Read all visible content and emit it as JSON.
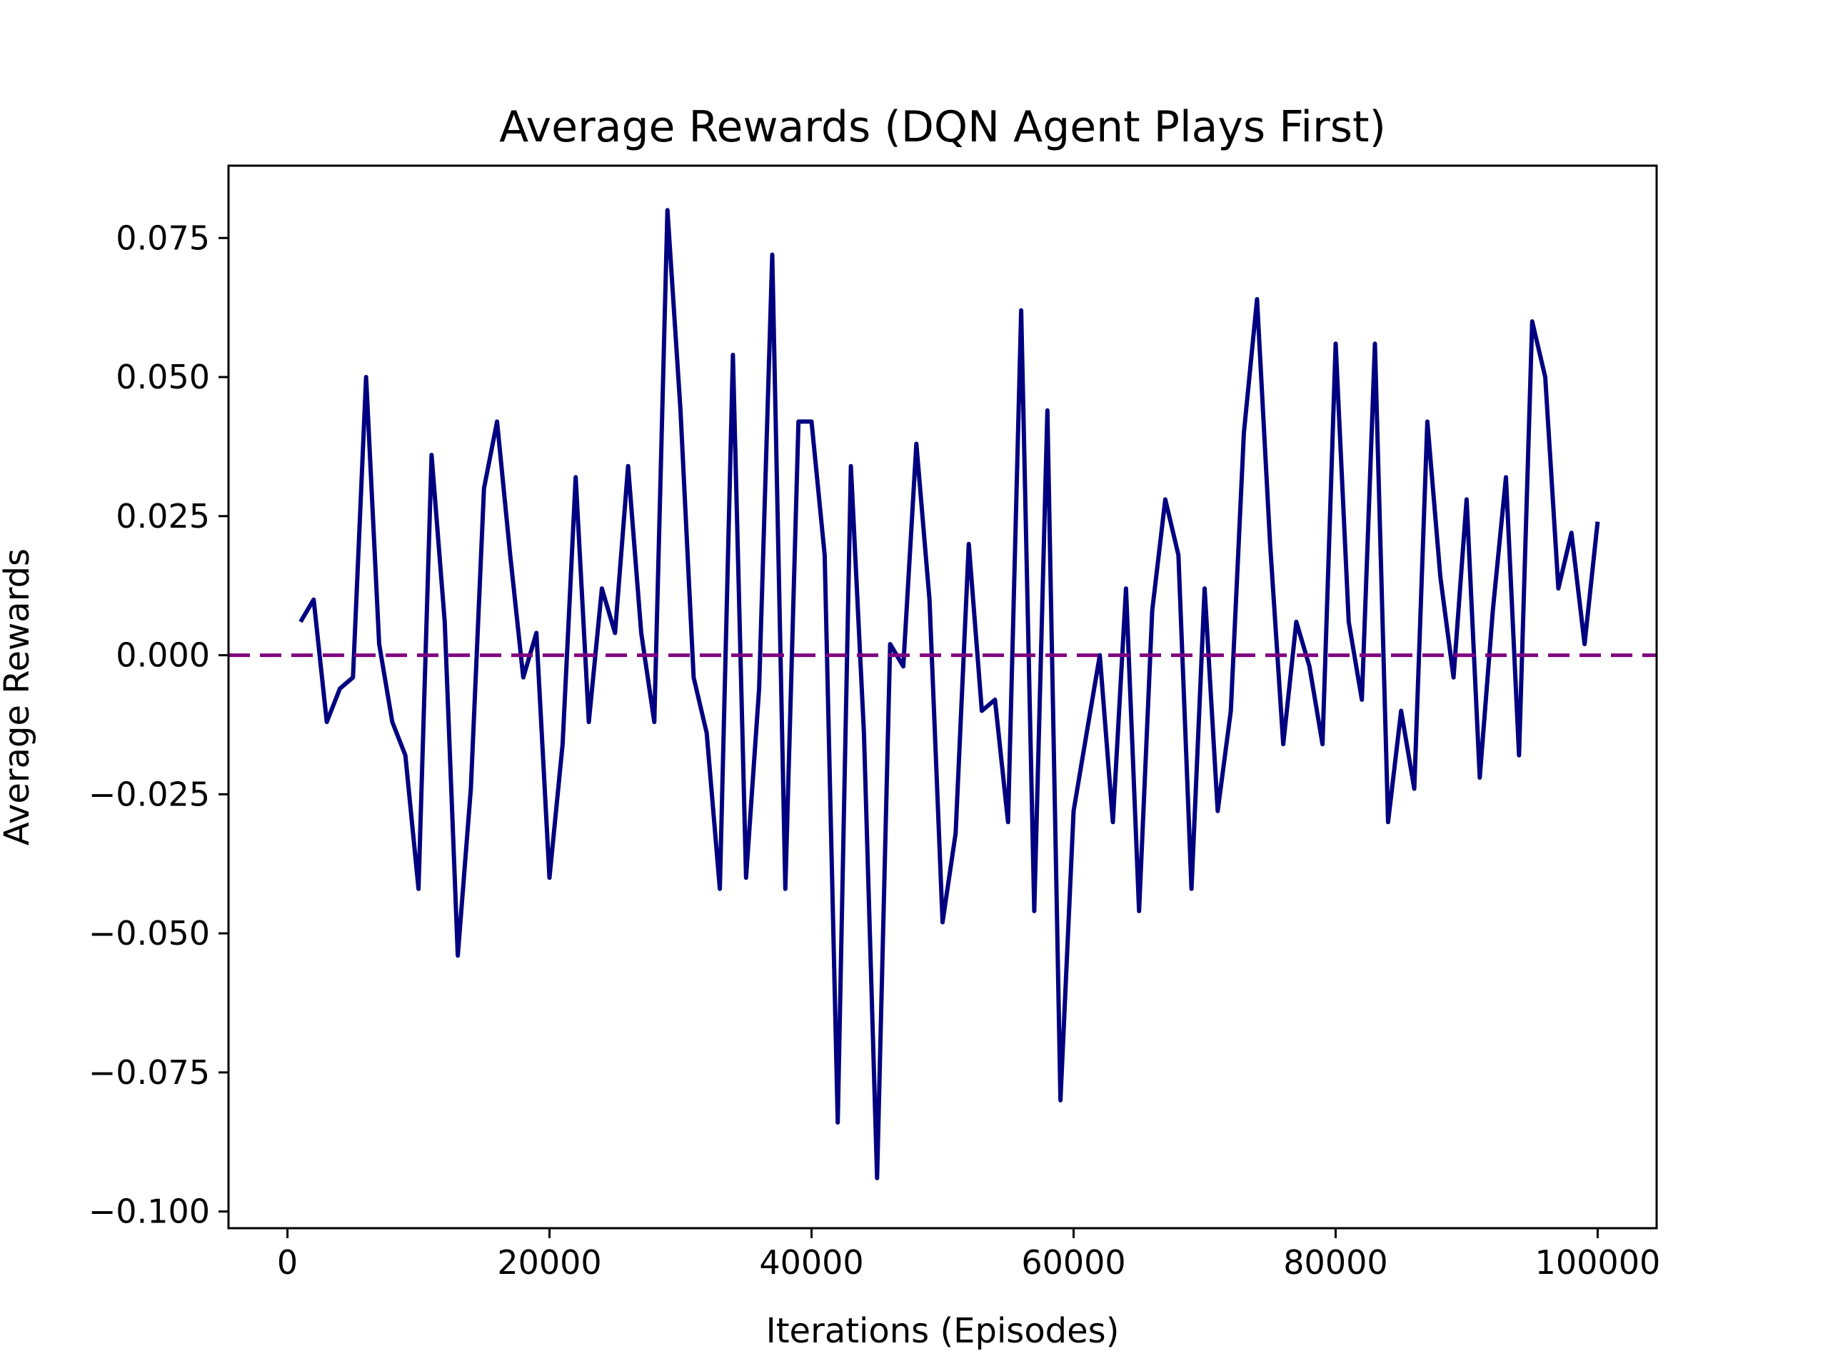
{
  "chart_data": {
    "type": "line",
    "title": "Average Rewards (DQN Agent Plays First)",
    "xlabel": "Iterations (Episodes)",
    "ylabel": "Average Rewards",
    "xlim": [
      -4500,
      104500
    ],
    "ylim": [
      -0.103,
      0.088
    ],
    "x_ticks": [
      0,
      20000,
      40000,
      60000,
      80000,
      100000
    ],
    "x_tick_labels": [
      "0",
      "20000",
      "40000",
      "60000",
      "80000",
      "100000"
    ],
    "y_ticks": [
      0.075,
      0.05,
      0.025,
      0.0,
      -0.025,
      -0.05,
      -0.075,
      -0.1
    ],
    "y_tick_labels": [
      "0.075",
      "0.050",
      "0.025",
      "0.000",
      "−0.025",
      "−0.050",
      "−0.075",
      "−0.100"
    ],
    "grid": false,
    "legend": "none",
    "series": [
      {
        "color": "#000080",
        "style": "solid",
        "x": [
          1000,
          2000,
          3000,
          4000,
          5000,
          6000,
          7000,
          8000,
          9000,
          10000,
          11000,
          12000,
          13000,
          14000,
          15000,
          16000,
          17000,
          18000,
          19000,
          20000,
          21000,
          22000,
          23000,
          24000,
          25000,
          26000,
          27000,
          28000,
          29000,
          30000,
          31000,
          32000,
          33000,
          34000,
          35000,
          36000,
          37000,
          38000,
          39000,
          40000,
          41000,
          42000,
          43000,
          44000,
          45000,
          46000,
          47000,
          48000,
          49000,
          50000,
          51000,
          52000,
          53000,
          54000,
          55000,
          56000,
          57000,
          58000,
          59000,
          60000,
          61000,
          62000,
          63000,
          64000,
          65000,
          66000,
          67000,
          68000,
          69000,
          70000,
          71000,
          72000,
          73000,
          74000,
          75000,
          76000,
          77000,
          78000,
          79000,
          80000,
          81000,
          82000,
          83000,
          84000,
          85000,
          86000,
          87000,
          88000,
          89000,
          90000,
          91000,
          92000,
          93000,
          94000,
          95000,
          96000,
          97000,
          98000,
          99000,
          100000
        ],
        "values": [
          0.006,
          0.01,
          -0.012,
          -0.006,
          -0.004,
          0.05,
          0.002,
          -0.012,
          -0.018,
          -0.042,
          0.036,
          0.006,
          -0.054,
          -0.024,
          0.03,
          0.042,
          0.018,
          -0.004,
          0.004,
          -0.04,
          -0.016,
          0.032,
          -0.012,
          0.012,
          0.004,
          0.034,
          0.004,
          -0.012,
          0.08,
          0.044,
          -0.004,
          -0.014,
          -0.042,
          0.054,
          -0.04,
          -0.006,
          0.072,
          -0.042,
          0.042,
          0.042,
          0.018,
          -0.084,
          0.034,
          -0.014,
          -0.094,
          0.002,
          -0.002,
          0.038,
          0.01,
          -0.048,
          -0.032,
          0.02,
          -0.01,
          -0.008,
          -0.03,
          0.062,
          -0.046,
          0.044,
          -0.08,
          -0.028,
          -0.014,
          0.0,
          -0.03,
          0.012,
          -0.046,
          0.008,
          0.028,
          0.018,
          -0.042,
          0.012,
          -0.028,
          -0.01,
          0.04,
          0.064,
          0.02,
          -0.016,
          0.006,
          -0.002,
          -0.016,
          0.056,
          0.006,
          -0.008,
          0.056,
          -0.03,
          -0.01,
          -0.024,
          0.042,
          0.014,
          -0.004,
          0.028,
          -0.022,
          0.008,
          0.032,
          -0.018,
          0.06,
          0.05,
          0.012,
          0.022,
          0.002,
          0.024
        ]
      },
      {
        "color": "#800080",
        "style": "dashed",
        "y_constant": 0.0
      }
    ]
  }
}
